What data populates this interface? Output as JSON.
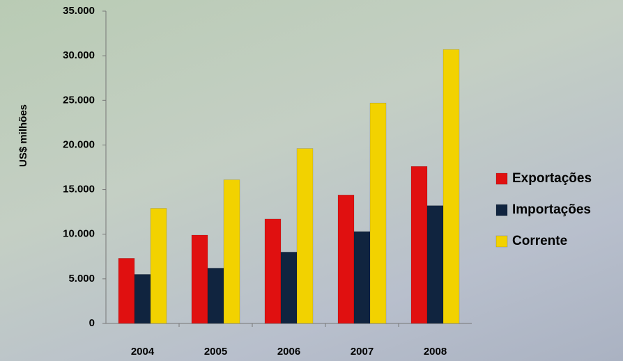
{
  "chart_data": {
    "type": "bar",
    "y_label": "US$ milhões",
    "categories": [
      "2004",
      "2005",
      "2006",
      "2007",
      "2008"
    ],
    "series": [
      {
        "name": "Exportações",
        "color": "#e01010",
        "values": [
          7300,
          9900,
          11700,
          14400,
          17600
        ]
      },
      {
        "name": "Importações",
        "color": "#10243f",
        "values": [
          5500,
          6200,
          8000,
          10300,
          13200
        ]
      },
      {
        "name": "Corrente",
        "color": "#f2d200",
        "values": [
          12900,
          16100,
          19600,
          24700,
          30700
        ]
      }
    ],
    "ylim": [
      0,
      35000
    ],
    "yticks": [
      0,
      {
        "value": 5000,
        "label": "5.000"
      },
      {
        "value": 10000,
        "label": "10.000"
      },
      {
        "value": 15000,
        "label": "15.000"
      },
      {
        "value": 20000,
        "label": "20.000"
      },
      {
        "value": 25000,
        "label": "25.000"
      },
      {
        "value": 30000,
        "label": "30.000"
      },
      {
        "value": 35000,
        "label": "35.000"
      }
    ],
    "grid": false,
    "legend": "right"
  }
}
